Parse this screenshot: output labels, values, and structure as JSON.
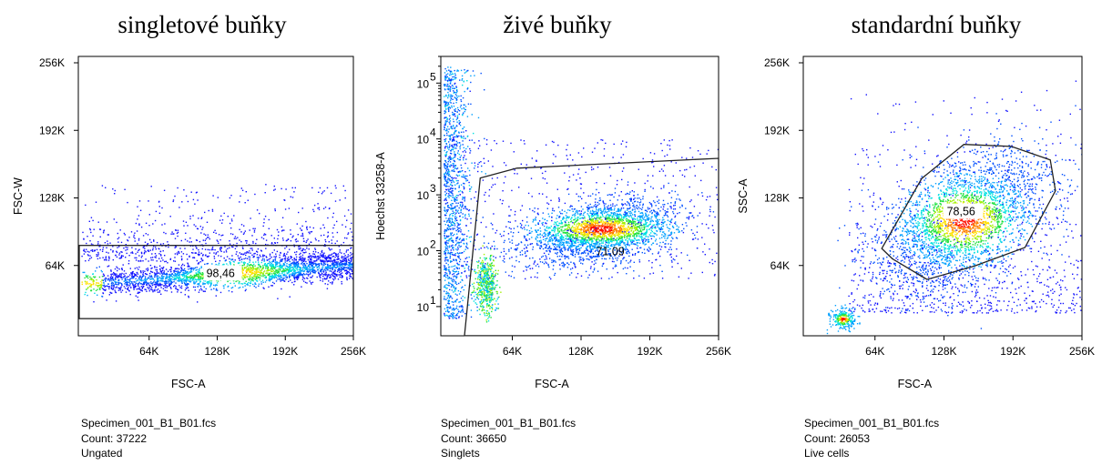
{
  "chart_data": [
    {
      "type": "scatter",
      "title": "singletové buňky",
      "xlabel": "FSC-A",
      "ylabel": "FSC-W",
      "xscale": "linear",
      "yscale": "linear",
      "xlim": [
        0,
        262144
      ],
      "ylim": [
        0,
        262144
      ],
      "xticks": [
        "64K",
        "128K",
        "192K",
        "256K"
      ],
      "yticks": [
        "64K",
        "128K",
        "192K",
        "256K"
      ],
      "gate": {
        "label": "98,46",
        "shape": "rectangle",
        "x": [
          0,
          262144
        ],
        "y": [
          14000,
          85000
        ]
      },
      "density": "pseudocolor blue-to-red, dense horizontal band at FSC-W ≈ 50K–70K across FSC-A 0–256K",
      "file": "Specimen_001_B1_B01.fcs",
      "count": "Count: 37222",
      "parent": "Ungated"
    },
    {
      "type": "scatter",
      "title": "živé buňky",
      "xlabel": "FSC-A",
      "ylabel": "Hoechst 33258-A",
      "xscale": "linear",
      "yscale": "log",
      "xlim": [
        0,
        262144
      ],
      "ylim": [
        3,
        300000
      ],
      "xticks": [
        "64K",
        "128K",
        "192K",
        "256K"
      ],
      "yticks": [
        "10^1",
        "10^2",
        "10^3",
        "10^4",
        "10^5"
      ],
      "gate": {
        "label": "71,09",
        "shape": "polygon",
        "points": [
          [
            20000,
            3
          ],
          [
            35000,
            2000
          ],
          [
            70000,
            3000
          ],
          [
            262144,
            4500
          ],
          [
            262144,
            3
          ],
          [
            20000,
            3
          ]
        ]
      },
      "density": "dense population around FSC-A 100K–200K, Hoechst ≈ 10^2–10^3; vertical streak near FSC-A 5K; cluster near FSC-A 40K, Hoechst ≈ 10^1.5",
      "file": "Specimen_001_B1_B01.fcs",
      "count": "Count: 36650",
      "parent": "Singlets"
    },
    {
      "type": "scatter",
      "title": "standardní buňky",
      "xlabel": "FSC-A",
      "ylabel": "SSC-A",
      "xscale": "linear",
      "yscale": "linear",
      "xlim": [
        0,
        262144
      ],
      "ylim": [
        0,
        262144
      ],
      "xticks": [
        "64K",
        "128K",
        "192K",
        "256K"
      ],
      "yticks": [
        "64K",
        "128K",
        "192K",
        "256K"
      ],
      "gate": {
        "label": "78,56",
        "shape": "polygon",
        "points": [
          [
            72000,
            82000
          ],
          [
            110000,
            150000
          ],
          [
            150000,
            183000
          ],
          [
            195000,
            181000
          ],
          [
            232000,
            168000
          ],
          [
            237000,
            138000
          ],
          [
            208000,
            83000
          ],
          [
            160000,
            65000
          ],
          [
            115000,
            52000
          ],
          [
            82000,
            72000
          ]
        ]
      },
      "density": "main population centred near FSC-A 150K, SSC-A 110K; small red debris cluster near FSC-A 35K, SSC-A 15K",
      "file": "Specimen_001_B1_B01.fcs",
      "count": "Count: 26053",
      "parent": "Live cells"
    }
  ]
}
